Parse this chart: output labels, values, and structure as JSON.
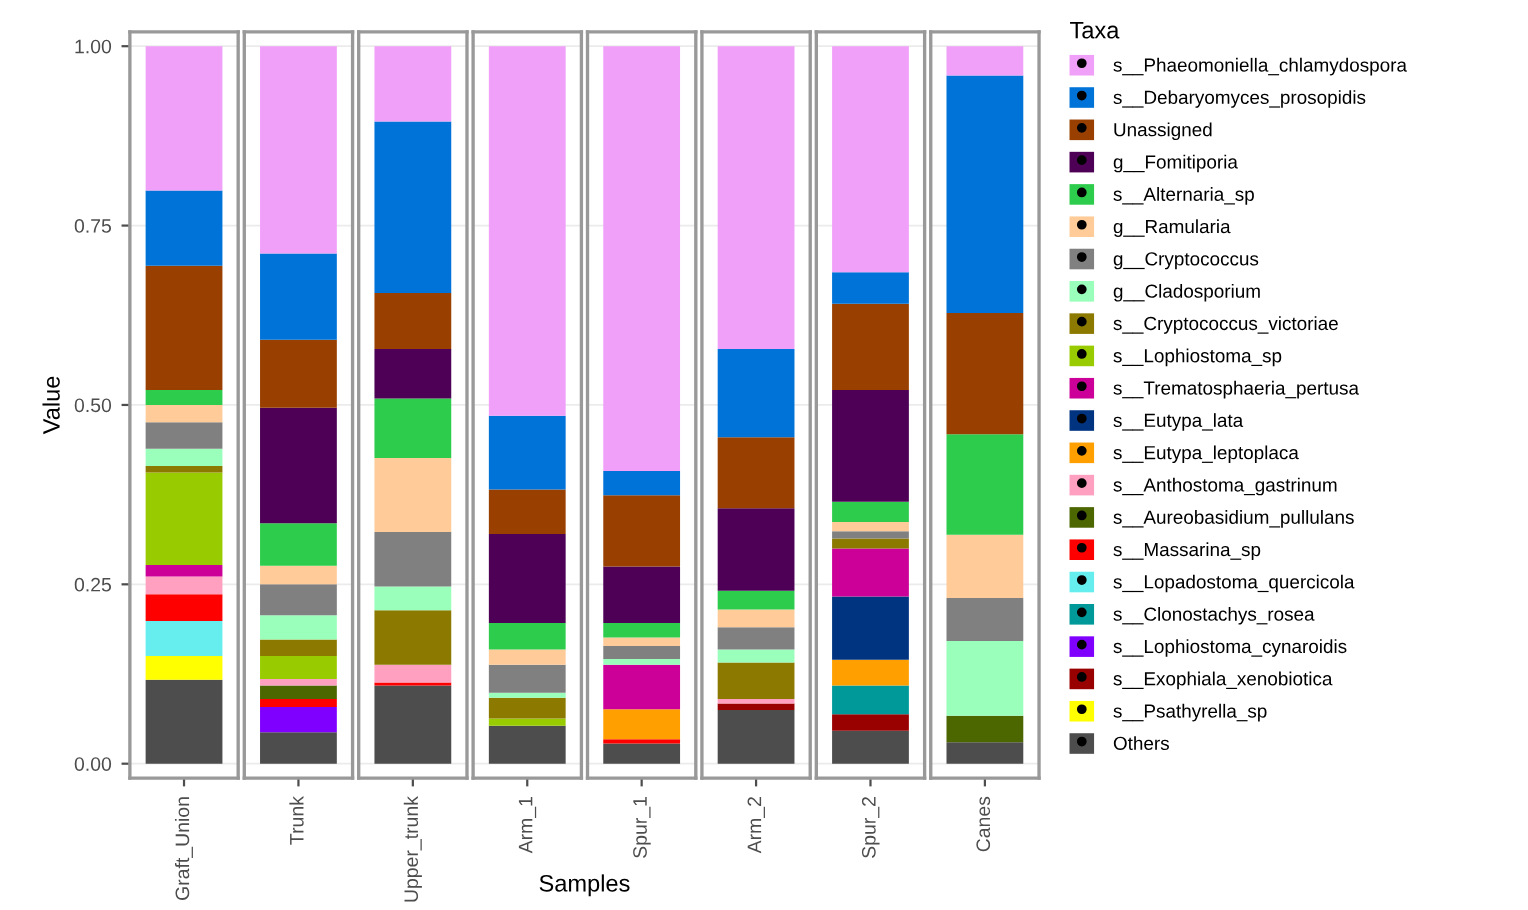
{
  "chart_data": {
    "type": "bar",
    "stacked": true,
    "xlabel": "Samples",
    "ylabel": "Value",
    "legend_title": "Taxa",
    "legend": "right",
    "grid": true,
    "categories": [
      "Graft_Union",
      "Trunk",
      "Upper_trunk",
      "Arm_1",
      "Spur_1",
      "Arm_2",
      "Spur_2",
      "Canes"
    ],
    "ylim": [
      -0.02,
      1.02
    ],
    "yticks": [
      {
        "value": 0,
        "label": "0.00"
      },
      {
        "value": 0.25,
        "label": "0.25"
      },
      {
        "value": 0.5,
        "label": "0.50"
      },
      {
        "value": 0.75,
        "label": "0.75"
      },
      {
        "value": 1,
        "label": "1.00"
      }
    ],
    "series": [
      {
        "name": "Others",
        "color": "#4d4d4d",
        "values": [
          0.117,
          0.044,
          0.109,
          0.053,
          0.028,
          0.075,
          0.046,
          0.03
        ]
      },
      {
        "name": "s__Psathyrella_sp",
        "color": "#ffff00",
        "values": [
          0.033,
          0,
          0,
          0,
          0,
          0,
          0,
          0
        ]
      },
      {
        "name": "s__Exophiala_xenobiotica",
        "color": "#990000",
        "values": [
          0,
          0,
          0,
          0,
          0,
          0.009,
          0.023,
          0
        ]
      },
      {
        "name": "s__Lophiostoma_cynaroidis",
        "color": "#7f00ff",
        "values": [
          0,
          0.035,
          0,
          0,
          0,
          0,
          0,
          0
        ]
      },
      {
        "name": "s__Clonostachys_rosea",
        "color": "#009999",
        "values": [
          0,
          0,
          0,
          0,
          0,
          0,
          0.04,
          0
        ]
      },
      {
        "name": "s__Lopadostoma_quercicola",
        "color": "#66eeee",
        "values": [
          0.049,
          0,
          0,
          0,
          0,
          0,
          0,
          0
        ]
      },
      {
        "name": "s__Massarina_sp",
        "color": "#ff0000",
        "values": [
          0.037,
          0.011,
          0.004,
          0,
          0.006,
          0,
          0,
          0
        ]
      },
      {
        "name": "s__Aureobasidium_pullulans",
        "color": "#4c6600",
        "values": [
          0,
          0.019,
          0,
          0,
          0,
          0,
          0,
          0.037
        ]
      },
      {
        "name": "s__Anthostoma_gastrinum",
        "color": "#ffa0c0",
        "values": [
          0.025,
          0.009,
          0.025,
          0,
          0,
          0.006,
          0,
          0
        ]
      },
      {
        "name": "s__Eutypa_leptoplaca",
        "color": "#ffa000",
        "values": [
          0,
          0,
          0,
          0,
          0.042,
          0,
          0.036,
          0
        ]
      },
      {
        "name": "s__Eutypa_lata",
        "color": "#003380",
        "values": [
          0,
          0,
          0,
          0,
          0,
          0,
          0.088,
          0
        ]
      },
      {
        "name": "s__Trematosphaeria_pertusa",
        "color": "#cc0099",
        "values": [
          0.016,
          0,
          0,
          0,
          0.062,
          0,
          0.067,
          0
        ]
      },
      {
        "name": "s__Lophiostoma_sp",
        "color": "#99cc00",
        "values": [
          0.129,
          0.032,
          0,
          0.01,
          0,
          0,
          0,
          0
        ]
      },
      {
        "name": "s__Cryptococcus_victoriae",
        "color": "#8c7a00",
        "values": [
          0.009,
          0.023,
          0.076,
          0.029,
          0,
          0.051,
          0.014,
          0
        ]
      },
      {
        "name": "g__Cladosporium",
        "color": "#99ffbb",
        "values": [
          0.024,
          0.034,
          0.033,
          0.007,
          0.008,
          0.018,
          0,
          0.104
        ]
      },
      {
        "name": "g__Cryptococcus",
        "color": "#808080",
        "values": [
          0.037,
          0.043,
          0.076,
          0.039,
          0.018,
          0.031,
          0.01,
          0.06
        ]
      },
      {
        "name": "g__Ramularia",
        "color": "#ffcc99",
        "values": [
          0.024,
          0.026,
          0.103,
          0.021,
          0.012,
          0.025,
          0.013,
          0.088
        ]
      },
      {
        "name": "s__Alternaria_sp",
        "color": "#2ecc4d",
        "values": [
          0.021,
          0.059,
          0.083,
          0.037,
          0.02,
          0.026,
          0.028,
          0.14
        ]
      },
      {
        "name": "g__Fomitiporia",
        "color": "#4d0055",
        "values": [
          0,
          0.161,
          0.069,
          0.124,
          0.079,
          0.115,
          0.156,
          0
        ]
      },
      {
        "name": "Unassigned",
        "color": "#994000",
        "values": [
          0.173,
          0.095,
          0.078,
          0.062,
          0.099,
          0.099,
          0.12,
          0.169
        ]
      },
      {
        "name": "s__Debaryomyces_prosopidis",
        "color": "#0073d9",
        "values": [
          0.105,
          0.12,
          0.239,
          0.103,
          0.034,
          0.123,
          0.044,
          0.331
        ]
      },
      {
        "name": "s__Phaeomoniella_chlamydospora",
        "color": "#f0a0f8",
        "values": [
          0.201,
          0.289,
          0.105,
          0.515,
          0.592,
          0.422,
          0.315,
          0.041
        ]
      }
    ]
  }
}
